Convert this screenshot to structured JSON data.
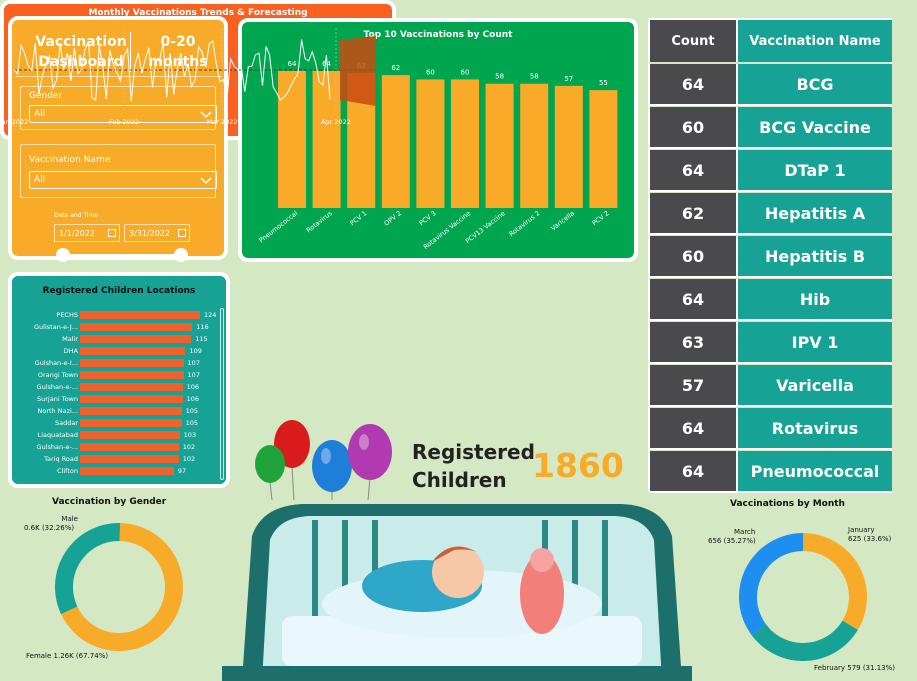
{
  "filters": {
    "title_left": "Vaccination Dashboard",
    "title_right": "0-20 months",
    "gender_label": "Gender",
    "gender_value": "All",
    "vaccine_label": "Vaccination Name",
    "vaccine_value": "All",
    "date_label": "Date and Time",
    "date_start": "1/1/2022",
    "date_end": "3/31/2022",
    "slider_start": 0,
    "slider_end": 1
  },
  "locations": {
    "title": "Registered Children Locations",
    "rows": [
      {
        "name": "PECHS",
        "value": 124
      },
      {
        "name": "Gulistan-e-J...",
        "value": 116
      },
      {
        "name": "Malir",
        "value": 115
      },
      {
        "name": "DHA",
        "value": 109
      },
      {
        "name": "Gulshan-e-I...",
        "value": 107
      },
      {
        "name": "Orangi Town",
        "value": 107
      },
      {
        "name": "Gulshan-e-...",
        "value": 106
      },
      {
        "name": "Surjani Town",
        "value": 106
      },
      {
        "name": "North Nazi...",
        "value": 105
      },
      {
        "name": "Saddar",
        "value": 105
      },
      {
        "name": "Liaquatabad",
        "value": 103
      },
      {
        "name": "Gulshan-e-...",
        "value": 102
      },
      {
        "name": "Tariq Road",
        "value": 102
      },
      {
        "name": "Clifton",
        "value": 97
      }
    ]
  },
  "top10": {
    "title": "Top 10 Vaccinations by Count"
  },
  "trend": {
    "title": "Monthly Vaccinations Trends & Forecasting",
    "x_ticks": [
      "Jan 2022",
      "Feb 2022",
      "Mar 2022",
      "Apr 2022"
    ]
  },
  "table": {
    "col_count": "Count",
    "col_name": "Vaccination Name",
    "rows": [
      {
        "count": "64",
        "name": "BCG"
      },
      {
        "count": "60",
        "name": "BCG Vaccine"
      },
      {
        "count": "64",
        "name": "DTaP 1"
      },
      {
        "count": "62",
        "name": "Hepatitis A"
      },
      {
        "count": "60",
        "name": "Hepatitis B"
      },
      {
        "count": "64",
        "name": "Hib"
      },
      {
        "count": "63",
        "name": "IPV 1"
      },
      {
        "count": "57",
        "name": "Varicella"
      },
      {
        "count": "64",
        "name": "Rotavirus"
      },
      {
        "count": "64",
        "name": "Pneumococcal"
      }
    ]
  },
  "registered": {
    "label_line1": "Registered",
    "label_line2": "Children",
    "value": "1860"
  },
  "gender_donut": {
    "title": "Vaccination by Gender",
    "male_label": "Male",
    "male_value": "0.6K (32.26%)",
    "female_label": "Female 1.26K (67.74%)"
  },
  "month_donut": {
    "title": "Vaccinations by Month",
    "march_label": "March",
    "march_value": "656 (35.27%)",
    "january_label": "January",
    "january_value": "625 (33.6%)",
    "february_label": "February 579 (31.13%)"
  },
  "colors": {
    "orange": "#f8ab28",
    "teal": "#16a395",
    "green": "#00a64f",
    "red_orange": "#fa6120",
    "dark_gray": "#4a4a4c",
    "blue": "#1e8ef0"
  },
  "chart_data": [
    {
      "type": "bar",
      "title": "Top 10 Vaccinations by Count",
      "categories": [
        "Pneumococcal",
        "Rotavirus",
        "PCV 1",
        "OPV 2",
        "PCV 3",
        "Rotavirus Vaccine",
        "PCV13 Vaccine",
        "Rotavirus 2",
        "Varicella",
        "PCV 2"
      ],
      "values": [
        64,
        64,
        63,
        62,
        60,
        60,
        58,
        58,
        57,
        55
      ],
      "xlabel": "",
      "ylabel": ""
    },
    {
      "type": "bar",
      "orientation": "horizontal",
      "title": "Registered Children Locations",
      "categories": [
        "PECHS",
        "Gulistan-e-J...",
        "Malir",
        "DHA",
        "Gulshan-e-I...",
        "Orangi Town",
        "Gulshan-e-...",
        "Surjani Town",
        "North Nazi...",
        "Saddar",
        "Liaquatabad",
        "Gulshan-e-...",
        "Tariq Road",
        "Clifton"
      ],
      "values": [
        124,
        116,
        115,
        109,
        107,
        107,
        106,
        106,
        105,
        105,
        103,
        102,
        102,
        97
      ]
    },
    {
      "type": "pie",
      "title": "Vaccination by Gender",
      "categories": [
        "Male",
        "Female"
      ],
      "values": [
        600,
        1260
      ],
      "colors": [
        "#16a395",
        "#f8ab28"
      ]
    },
    {
      "type": "pie",
      "title": "Vaccinations by Month",
      "categories": [
        "January",
        "February",
        "March"
      ],
      "values": [
        625,
        579,
        656
      ],
      "colors": [
        "#f8ab28",
        "#16a395",
        "#1e8ef0"
      ]
    }
  ]
}
